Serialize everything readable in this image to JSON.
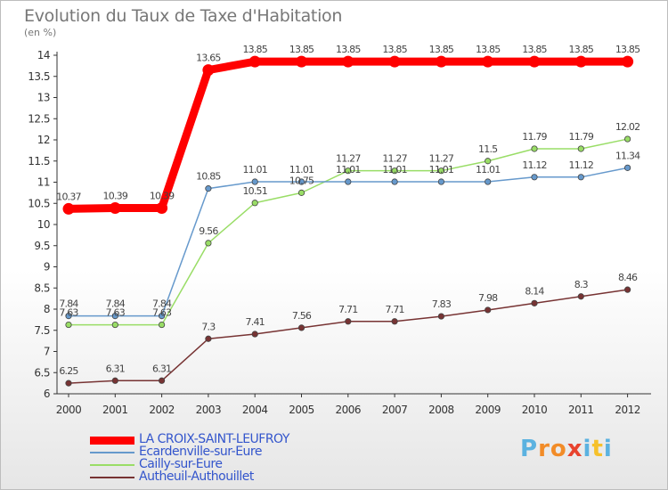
{
  "chart_data": {
    "type": "line",
    "title": "Evolution du Taux de Taxe d'Habitation",
    "subtitle": "(en %)",
    "xlabel": "",
    "ylabel": "",
    "x": [
      "2000",
      "2001",
      "2002",
      "2003",
      "2004",
      "2005",
      "2006",
      "2007",
      "2008",
      "2009",
      "2010",
      "2011",
      "2012"
    ],
    "ylim": [
      6,
      14
    ],
    "yticks": [
      6,
      6.5,
      7,
      7.5,
      8,
      8.5,
      9,
      9.5,
      10,
      10.5,
      11,
      11.5,
      12,
      12.5,
      13,
      13.5,
      14
    ],
    "grid": false,
    "legend_position": "bottom-left",
    "series": [
      {
        "name": "LA CROIX-SAINT-LEUFROY",
        "color": "#ff0000",
        "width": "thick",
        "marker": "dot",
        "values": [
          10.37,
          10.39,
          10.39,
          13.65,
          13.85,
          13.85,
          13.85,
          13.85,
          13.85,
          13.85,
          13.85,
          13.85,
          13.85
        ],
        "labels": [
          "10.37",
          "10.39",
          "10.39",
          "13.65",
          "13.85",
          "13.85",
          "13.85",
          "13.85",
          "13.85",
          "13.85",
          "13.85",
          "13.85",
          "13.85"
        ]
      },
      {
        "name": "Ecardenville-sur-Eure",
        "color": "#6699cc",
        "marker": "dot",
        "values": [
          7.84,
          7.84,
          7.84,
          10.85,
          11.01,
          11.01,
          11.01,
          11.01,
          11.01,
          11.01,
          11.12,
          11.12,
          11.34
        ],
        "labels": [
          "7.84",
          "7.84",
          "7.84",
          "10.85",
          "11.01",
          "11.01",
          "11.01",
          "11.01",
          "11.01",
          "11.01",
          "11.12",
          "11.12",
          "11.34"
        ]
      },
      {
        "name": "Cailly-sur-Eure",
        "color": "#99dd66",
        "marker": "dot",
        "values": [
          7.63,
          7.63,
          7.63,
          9.56,
          10.51,
          10.75,
          11.27,
          11.27,
          11.27,
          11.5,
          11.79,
          11.79,
          12.02
        ],
        "labels": [
          "7.63",
          "7.63",
          "7.63",
          "9.56",
          "10.51",
          "10.75",
          "11.27",
          "11.27",
          "11.27",
          "11.5",
          "11.79",
          "11.79",
          "12.02"
        ]
      },
      {
        "name": "Autheuil-Authouillet",
        "color": "#773333",
        "marker": "dot",
        "values": [
          6.25,
          6.31,
          6.31,
          7.3,
          7.41,
          7.56,
          7.71,
          7.71,
          7.83,
          7.98,
          8.14,
          8.3,
          8.46
        ],
        "labels": [
          "6.25",
          "6.31",
          "6.31",
          "7.3",
          "7.41",
          "7.56",
          "7.71",
          "7.71",
          "7.83",
          "7.98",
          "8.14",
          "8.3",
          "8.46"
        ]
      }
    ]
  },
  "brand": {
    "name": "Proxiti",
    "letters": [
      "P",
      "r",
      "o",
      "x",
      "i",
      "t",
      "i"
    ],
    "letter_colors": [
      "#5bb2e0",
      "#f28c28",
      "#f28c28",
      "#e8432e",
      "#5bb2e0",
      "#f6c12b",
      "#5bb2e0"
    ]
  }
}
